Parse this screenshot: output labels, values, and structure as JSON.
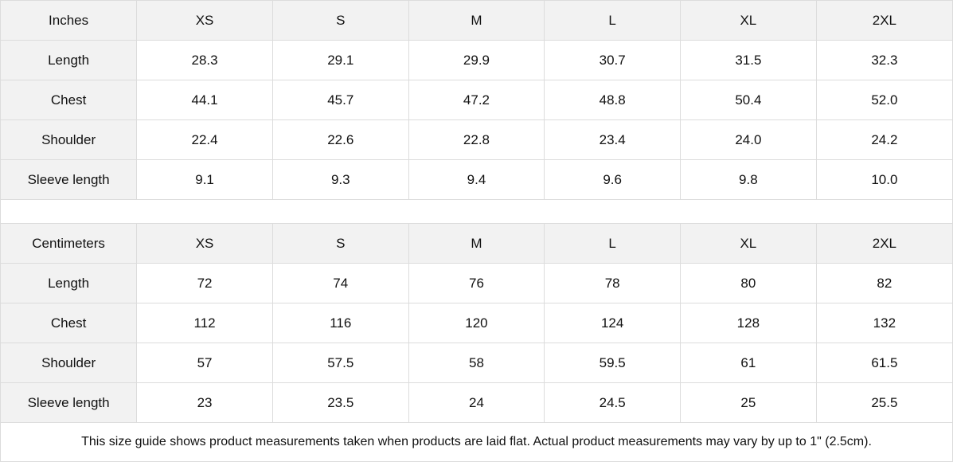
{
  "inches": {
    "header": [
      "Inches",
      "XS",
      "S",
      "M",
      "L",
      "XL",
      "2XL"
    ],
    "rows": [
      {
        "label": "Length",
        "values": [
          "28.3",
          "29.1",
          "29.9",
          "30.7",
          "31.5",
          "32.3"
        ]
      },
      {
        "label": "Chest",
        "values": [
          "44.1",
          "45.7",
          "47.2",
          "48.8",
          "50.4",
          "52.0"
        ]
      },
      {
        "label": "Shoulder",
        "values": [
          "22.4",
          "22.6",
          "22.8",
          "23.4",
          "24.0",
          "24.2"
        ]
      },
      {
        "label": "Sleeve length",
        "values": [
          "9.1",
          "9.3",
          "9.4",
          "9.6",
          "9.8",
          "10.0"
        ]
      }
    ]
  },
  "centimeters": {
    "header": [
      "Centimeters",
      "XS",
      "S",
      "M",
      "L",
      "XL",
      "2XL"
    ],
    "rows": [
      {
        "label": "Length",
        "values": [
          "72",
          "74",
          "76",
          "78",
          "80",
          "82"
        ]
      },
      {
        "label": "Chest",
        "values": [
          "112",
          "116",
          "120",
          "124",
          "128",
          "132"
        ]
      },
      {
        "label": "Shoulder",
        "values": [
          "57",
          "57.5",
          "58",
          "59.5",
          "61",
          "61.5"
        ]
      },
      {
        "label": "Sleeve length",
        "values": [
          "23",
          "23.5",
          "24",
          "24.5",
          "25",
          "25.5"
        ]
      }
    ]
  },
  "footnote": "This size guide shows product measurements taken when products are laid flat.  Actual product measurements may vary by up to 1\" (2.5cm).",
  "colors": {
    "header_bg": "#f2f2f2",
    "border": "#dcdcdc"
  }
}
